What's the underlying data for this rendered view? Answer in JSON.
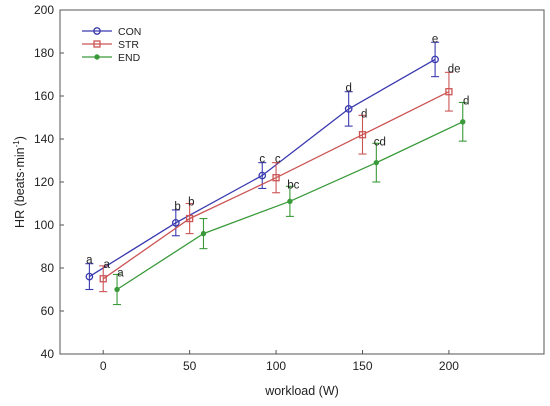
{
  "chart_data": {
    "type": "line",
    "xlabel": "workload (W)",
    "ylabel": "HR (beats·min",
    "ylabel_superscript": "-1",
    "ylabel_close": ")",
    "xlim": [
      -25,
      255
    ],
    "ylim": [
      40,
      200
    ],
    "xticks": [
      0,
      50,
      100,
      150,
      200
    ],
    "yticks": [
      40,
      60,
      80,
      100,
      120,
      140,
      160,
      180,
      200
    ],
    "grid": false,
    "legend_position": "top-left",
    "series": [
      {
        "name": "CON",
        "color": "#3a3ab0",
        "marker": "diamond",
        "x": [
          -8,
          42,
          92,
          142,
          192
        ],
        "y": [
          76,
          101,
          123,
          154,
          177
        ],
        "err": [
          6,
          6,
          6,
          8,
          8
        ],
        "sig_labels": [
          "a",
          "b",
          "c",
          "d",
          "e"
        ]
      },
      {
        "name": "STR",
        "color": "#cc5555",
        "marker": "square",
        "x": [
          0,
          50,
          100,
          150,
          200
        ],
        "y": [
          75,
          103,
          122,
          142,
          162
        ],
        "err": [
          6,
          7,
          7,
          9,
          9
        ],
        "sig_labels": [
          "a",
          "b",
          "c",
          "d",
          "d"
        ]
      },
      {
        "name": "END",
        "color": "#3a9a3a",
        "marker": "plus",
        "x": [
          8,
          58,
          108,
          158,
          208
        ],
        "y": [
          70,
          96,
          111,
          129,
          148
        ],
        "err": [
          7,
          7,
          7,
          9,
          9
        ],
        "sig_labels": [
          "a",
          "b",
          "bc",
          "cd",
          "de"
        ]
      }
    ],
    "annotations": [
      {
        "text": "a",
        "x": -8,
        "y": 82
      },
      {
        "text": "a",
        "x": 2,
        "y": 80
      },
      {
        "text": "a",
        "x": 10,
        "y": 76
      },
      {
        "text": "b",
        "x": 43,
        "y": 107
      },
      {
        "text": "b",
        "x": 51,
        "y": 109
      },
      {
        "text": "c",
        "x": 92,
        "y": 129
      },
      {
        "text": "c",
        "x": 101,
        "y": 129
      },
      {
        "text": "bc",
        "x": 110,
        "y": 117
      },
      {
        "text": "d",
        "x": 142,
        "y": 162
      },
      {
        "text": "d",
        "x": 151,
        "y": 150
      },
      {
        "text": "cd",
        "x": 160,
        "y": 137
      },
      {
        "text": "e",
        "x": 192,
        "y": 185
      },
      {
        "text": "de",
        "x": 203,
        "y": 171
      },
      {
        "text": "d",
        "x": 210,
        "y": 156
      }
    ]
  }
}
